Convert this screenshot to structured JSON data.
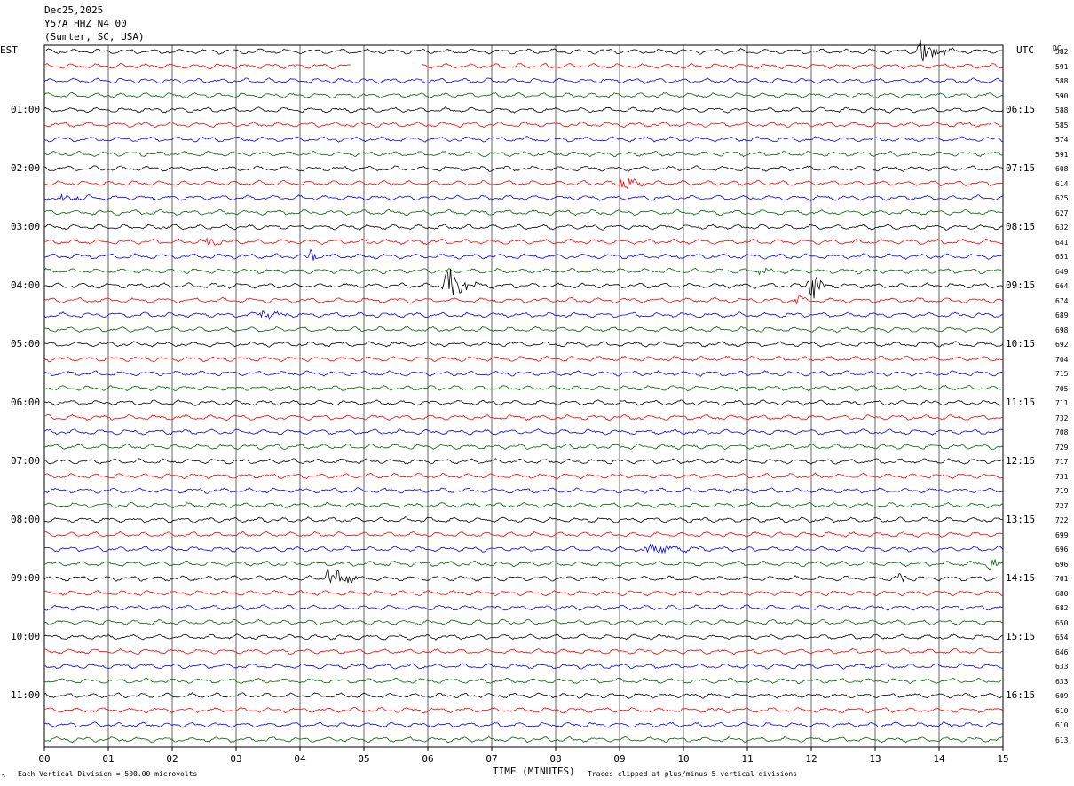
{
  "header": {
    "date": "Dec25,2025",
    "station": "Y57A HHZ N4 00",
    "location": "(Sumter, SC, USA)"
  },
  "left_timezone": "EST",
  "right_timezone": "UTC",
  "dc_label": "DC",
  "footer": {
    "vertical_division": "Each Vertical Division =  500.00 microvolts",
    "xlabel": "TIME (MINUTES)",
    "clip_note": "Traces clipped at plus/minus 5 vertical divisions"
  },
  "colors": {
    "trace_cycle": [
      "#000000",
      "#ff0000",
      "#0000ff",
      "#006400"
    ],
    "grid": "#000000",
    "background": "#ffffff"
  },
  "chart_data": {
    "type": "line",
    "title": "Y57A HHZ N4 00",
    "xlabel": "TIME (MINUTES)",
    "x_ticks": [
      "00",
      "01",
      "02",
      "03",
      "04",
      "05",
      "06",
      "07",
      "08",
      "09",
      "10",
      "11",
      "12",
      "13",
      "14",
      "15"
    ],
    "xlim": [
      0,
      15
    ],
    "grid": "vertical lines every minute",
    "row_count": 48,
    "rows_per_hour": 4,
    "left_hour_labels": [
      "01:00",
      "02:00",
      "03:00",
      "04:00",
      "05:00",
      "06:00",
      "07:00",
      "08:00",
      "09:00",
      "10:00",
      "11:00"
    ],
    "right_hour_labels": [
      "06:15",
      "07:15",
      "08:15",
      "09:15",
      "10:15",
      "11:15",
      "12:15",
      "13:15",
      "14:15",
      "15:15",
      "16:15"
    ],
    "dc_offsets": [
      582,
      591,
      588,
      590,
      588,
      585,
      574,
      591,
      608,
      614,
      625,
      627,
      632,
      641,
      651,
      649,
      664,
      674,
      689,
      698,
      692,
      704,
      715,
      705,
      711,
      732,
      708,
      729,
      717,
      731,
      719,
      727,
      722,
      699,
      696,
      696,
      701,
      680,
      682,
      650,
      654,
      646,
      633,
      633,
      609,
      610,
      610,
      613
    ],
    "events": [
      {
        "row": 0,
        "minute": 13.7,
        "amplitude": 2.2,
        "duration": 0.6
      },
      {
        "row": 9,
        "minute": 9.05,
        "amplitude": 1.3,
        "duration": 0.45
      },
      {
        "row": 10,
        "minute": 0.3,
        "amplitude": 0.8,
        "duration": 0.4
      },
      {
        "row": 13,
        "minute": 2.5,
        "amplitude": 0.7,
        "duration": 0.5
      },
      {
        "row": 14,
        "minute": 4.15,
        "amplitude": 1.4,
        "duration": 0.2
      },
      {
        "row": 15,
        "minute": 11.2,
        "amplitude": 0.6,
        "duration": 0.3
      },
      {
        "row": 16,
        "minute": 6.3,
        "amplitude": 3.0,
        "duration": 0.55
      },
      {
        "row": 16,
        "minute": 12.0,
        "amplitude": 3.4,
        "duration": 0.25
      },
      {
        "row": 17,
        "minute": 11.8,
        "amplitude": 1.2,
        "duration": 0.15
      },
      {
        "row": 18,
        "minute": 3.4,
        "amplitude": 0.8,
        "duration": 0.45
      },
      {
        "row": 34,
        "minute": 9.4,
        "amplitude": 0.9,
        "duration": 1.2
      },
      {
        "row": 35,
        "minute": 14.8,
        "amplitude": 0.8,
        "duration": 0.4
      },
      {
        "row": 36,
        "minute": 4.45,
        "amplitude": 2.4,
        "duration": 0.55
      },
      {
        "row": 36,
        "minute": 13.4,
        "amplitude": 1.1,
        "duration": 0.15
      },
      {
        "row": 41,
        "minute": 6.0,
        "amplitude": 0.8,
        "duration": 0.15
      }
    ],
    "gaps": [
      {
        "row": 1,
        "from_minute": 4.8,
        "to_minute": 5.9
      }
    ]
  }
}
